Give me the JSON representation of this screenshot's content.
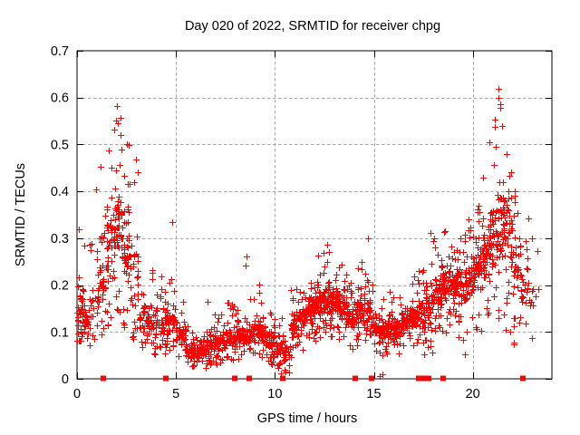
{
  "chart_data": {
    "type": "scatter",
    "title": "Day 020 of 2022, SRMTID for receiver chpg",
    "xlabel": "GPS time / hours",
    "ylabel": "SRMTID / TECUs",
    "xlim": [
      0,
      24
    ],
    "ylim": [
      0,
      0.7
    ],
    "xticks": [
      0,
      5,
      10,
      15,
      20
    ],
    "xtick_labels": [
      "0",
      "5",
      "10",
      "15",
      "20"
    ],
    "yticks": [
      0,
      0.1,
      0.2,
      0.3,
      0.4,
      0.5,
      0.6,
      0.7
    ],
    "ytick_labels": [
      "0",
      "0.1",
      "0.2",
      "0.3",
      "0.4",
      "0.5",
      "0.6",
      "0.7"
    ],
    "grid": true,
    "legend": "none",
    "marker": "plus-cross",
    "marker_color": "#ff0000",
    "grid_color": "#a8a8a8",
    "axis_color": "#000000",
    "text_color": "#000000",
    "background_color": "#ffffff",
    "seed": 13,
    "density_bins_format": [
      "x_start_hours",
      "x_end_hours",
      "count",
      "y_min",
      "y_q1",
      "y_q3",
      "y_max"
    ],
    "density_bins": [
      [
        0.0,
        0.35,
        40,
        0.08,
        0.1,
        0.2,
        0.32
      ],
      [
        0.35,
        0.7,
        25,
        0.06,
        0.09,
        0.17,
        0.3
      ],
      [
        0.7,
        1.1,
        22,
        0.08,
        0.11,
        0.22,
        0.4
      ],
      [
        1.1,
        1.5,
        28,
        0.09,
        0.14,
        0.28,
        0.45
      ],
      [
        1.5,
        1.9,
        45,
        0.1,
        0.18,
        0.38,
        0.52
      ],
      [
        1.9,
        2.3,
        50,
        0.12,
        0.22,
        0.42,
        0.57
      ],
      [
        2.3,
        2.7,
        45,
        0.1,
        0.17,
        0.35,
        0.5
      ],
      [
        2.7,
        3.1,
        32,
        0.08,
        0.14,
        0.3,
        0.46
      ],
      [
        3.1,
        3.5,
        26,
        0.06,
        0.09,
        0.18,
        0.33
      ],
      [
        3.5,
        4.0,
        38,
        0.05,
        0.08,
        0.15,
        0.26
      ],
      [
        4.0,
        4.5,
        40,
        0.05,
        0.09,
        0.15,
        0.22
      ],
      [
        4.5,
        5.0,
        45,
        0.06,
        0.1,
        0.16,
        0.32
      ],
      [
        5.0,
        5.5,
        40,
        0.04,
        0.07,
        0.12,
        0.19
      ],
      [
        5.5,
        6.0,
        45,
        0.02,
        0.04,
        0.08,
        0.13
      ],
      [
        6.0,
        6.5,
        50,
        0.02,
        0.04,
        0.08,
        0.13
      ],
      [
        6.5,
        7.0,
        50,
        0.03,
        0.05,
        0.1,
        0.19
      ],
      [
        7.0,
        7.5,
        50,
        0.03,
        0.06,
        0.1,
        0.15
      ],
      [
        7.5,
        8.0,
        50,
        0.04,
        0.06,
        0.11,
        0.17
      ],
      [
        8.0,
        8.5,
        50,
        0.04,
        0.07,
        0.12,
        0.21
      ],
      [
        8.5,
        9.0,
        45,
        0.05,
        0.07,
        0.12,
        0.26
      ],
      [
        9.0,
        9.5,
        50,
        0.04,
        0.07,
        0.13,
        0.21
      ],
      [
        9.5,
        10.0,
        45,
        0.03,
        0.06,
        0.11,
        0.16
      ],
      [
        10.0,
        10.4,
        32,
        0.01,
        0.04,
        0.09,
        0.14
      ],
      [
        10.4,
        10.8,
        28,
        0.01,
        0.03,
        0.08,
        0.13
      ],
      [
        10.8,
        11.2,
        40,
        0.04,
        0.08,
        0.14,
        0.2
      ],
      [
        11.2,
        11.6,
        45,
        0.06,
        0.1,
        0.16,
        0.22
      ],
      [
        11.6,
        12.0,
        50,
        0.08,
        0.12,
        0.18,
        0.25
      ],
      [
        12.0,
        12.4,
        50,
        0.08,
        0.12,
        0.19,
        0.27
      ],
      [
        12.4,
        12.8,
        50,
        0.1,
        0.13,
        0.2,
        0.29
      ],
      [
        12.8,
        13.2,
        50,
        0.09,
        0.13,
        0.2,
        0.26
      ],
      [
        13.2,
        13.6,
        50,
        0.08,
        0.12,
        0.19,
        0.25
      ],
      [
        13.6,
        14.0,
        45,
        0.06,
        0.1,
        0.17,
        0.24
      ],
      [
        14.0,
        14.4,
        45,
        0.07,
        0.11,
        0.18,
        0.28
      ],
      [
        14.4,
        14.8,
        40,
        0.07,
        0.11,
        0.18,
        0.3
      ],
      [
        14.8,
        15.2,
        38,
        0.05,
        0.08,
        0.14,
        0.22
      ],
      [
        15.2,
        15.6,
        42,
        0.04,
        0.07,
        0.13,
        0.18
      ],
      [
        15.6,
        16.0,
        42,
        0.05,
        0.08,
        0.13,
        0.2
      ],
      [
        16.0,
        16.4,
        42,
        0.05,
        0.08,
        0.14,
        0.19
      ],
      [
        16.4,
        16.8,
        42,
        0.06,
        0.09,
        0.15,
        0.21
      ],
      [
        16.8,
        17.2,
        42,
        0.07,
        0.1,
        0.16,
        0.22
      ],
      [
        17.2,
        17.6,
        42,
        0.05,
        0.1,
        0.17,
        0.26
      ],
      [
        17.6,
        18.0,
        42,
        0.05,
        0.12,
        0.2,
        0.31
      ],
      [
        18.0,
        18.4,
        42,
        0.1,
        0.14,
        0.22,
        0.3
      ],
      [
        18.4,
        18.8,
        48,
        0.08,
        0.15,
        0.24,
        0.32
      ],
      [
        18.8,
        19.2,
        48,
        0.1,
        0.16,
        0.25,
        0.33
      ],
      [
        19.2,
        19.6,
        42,
        0.08,
        0.15,
        0.25,
        0.33
      ],
      [
        19.6,
        20.0,
        42,
        0.04,
        0.15,
        0.26,
        0.34
      ],
      [
        20.0,
        20.4,
        48,
        0.08,
        0.18,
        0.3,
        0.42
      ],
      [
        20.4,
        20.8,
        48,
        0.1,
        0.2,
        0.33,
        0.5
      ],
      [
        20.8,
        21.2,
        48,
        0.12,
        0.22,
        0.38,
        0.55
      ],
      [
        21.2,
        21.6,
        48,
        0.12,
        0.24,
        0.42,
        0.6
      ],
      [
        21.6,
        22.0,
        42,
        0.1,
        0.22,
        0.38,
        0.48
      ],
      [
        22.0,
        22.4,
        36,
        0.07,
        0.15,
        0.3,
        0.4
      ],
      [
        22.4,
        22.8,
        24,
        0.05,
        0.12,
        0.25,
        0.36
      ],
      [
        22.8,
        23.35,
        12,
        0.07,
        0.1,
        0.22,
        0.32
      ]
    ],
    "highlight_points": [
      [
        2.0,
        0.582
      ],
      [
        1.95,
        0.552
      ],
      [
        2.05,
        0.545
      ],
      [
        1.88,
        0.532
      ],
      [
        2.18,
        0.52
      ],
      [
        1.62,
        0.487
      ],
      [
        2.5,
        0.5
      ],
      [
        2.98,
        0.468
      ],
      [
        3.05,
        0.44
      ],
      [
        1.18,
        0.452
      ],
      [
        0.95,
        0.405
      ],
      [
        4.82,
        0.335
      ],
      [
        8.55,
        0.262
      ],
      [
        8.52,
        0.242
      ],
      [
        12.65,
        0.287
      ],
      [
        12.72,
        0.27
      ],
      [
        14.68,
        0.3
      ],
      [
        17.85,
        0.312
      ],
      [
        19.85,
        0.302
      ],
      [
        21.3,
        0.619
      ],
      [
        21.28,
        0.6
      ],
      [
        21.38,
        0.585
      ],
      [
        21.12,
        0.553
      ],
      [
        21.5,
        0.54
      ],
      [
        20.85,
        0.505
      ],
      [
        21.72,
        0.48
      ],
      [
        22.1,
        0.4
      ],
      [
        23.0,
        0.3
      ],
      [
        15.3,
        0.005
      ],
      [
        15.42,
        0.01
      ],
      [
        10.32,
        0.012
      ],
      [
        10.5,
        0.02
      ]
    ],
    "zero_flag_points_x": [
      1.33,
      4.5,
      7.95,
      8.7,
      10.4,
      14.05,
      14.9,
      17.25,
      17.5,
      17.78,
      18.5,
      22.55
    ]
  }
}
